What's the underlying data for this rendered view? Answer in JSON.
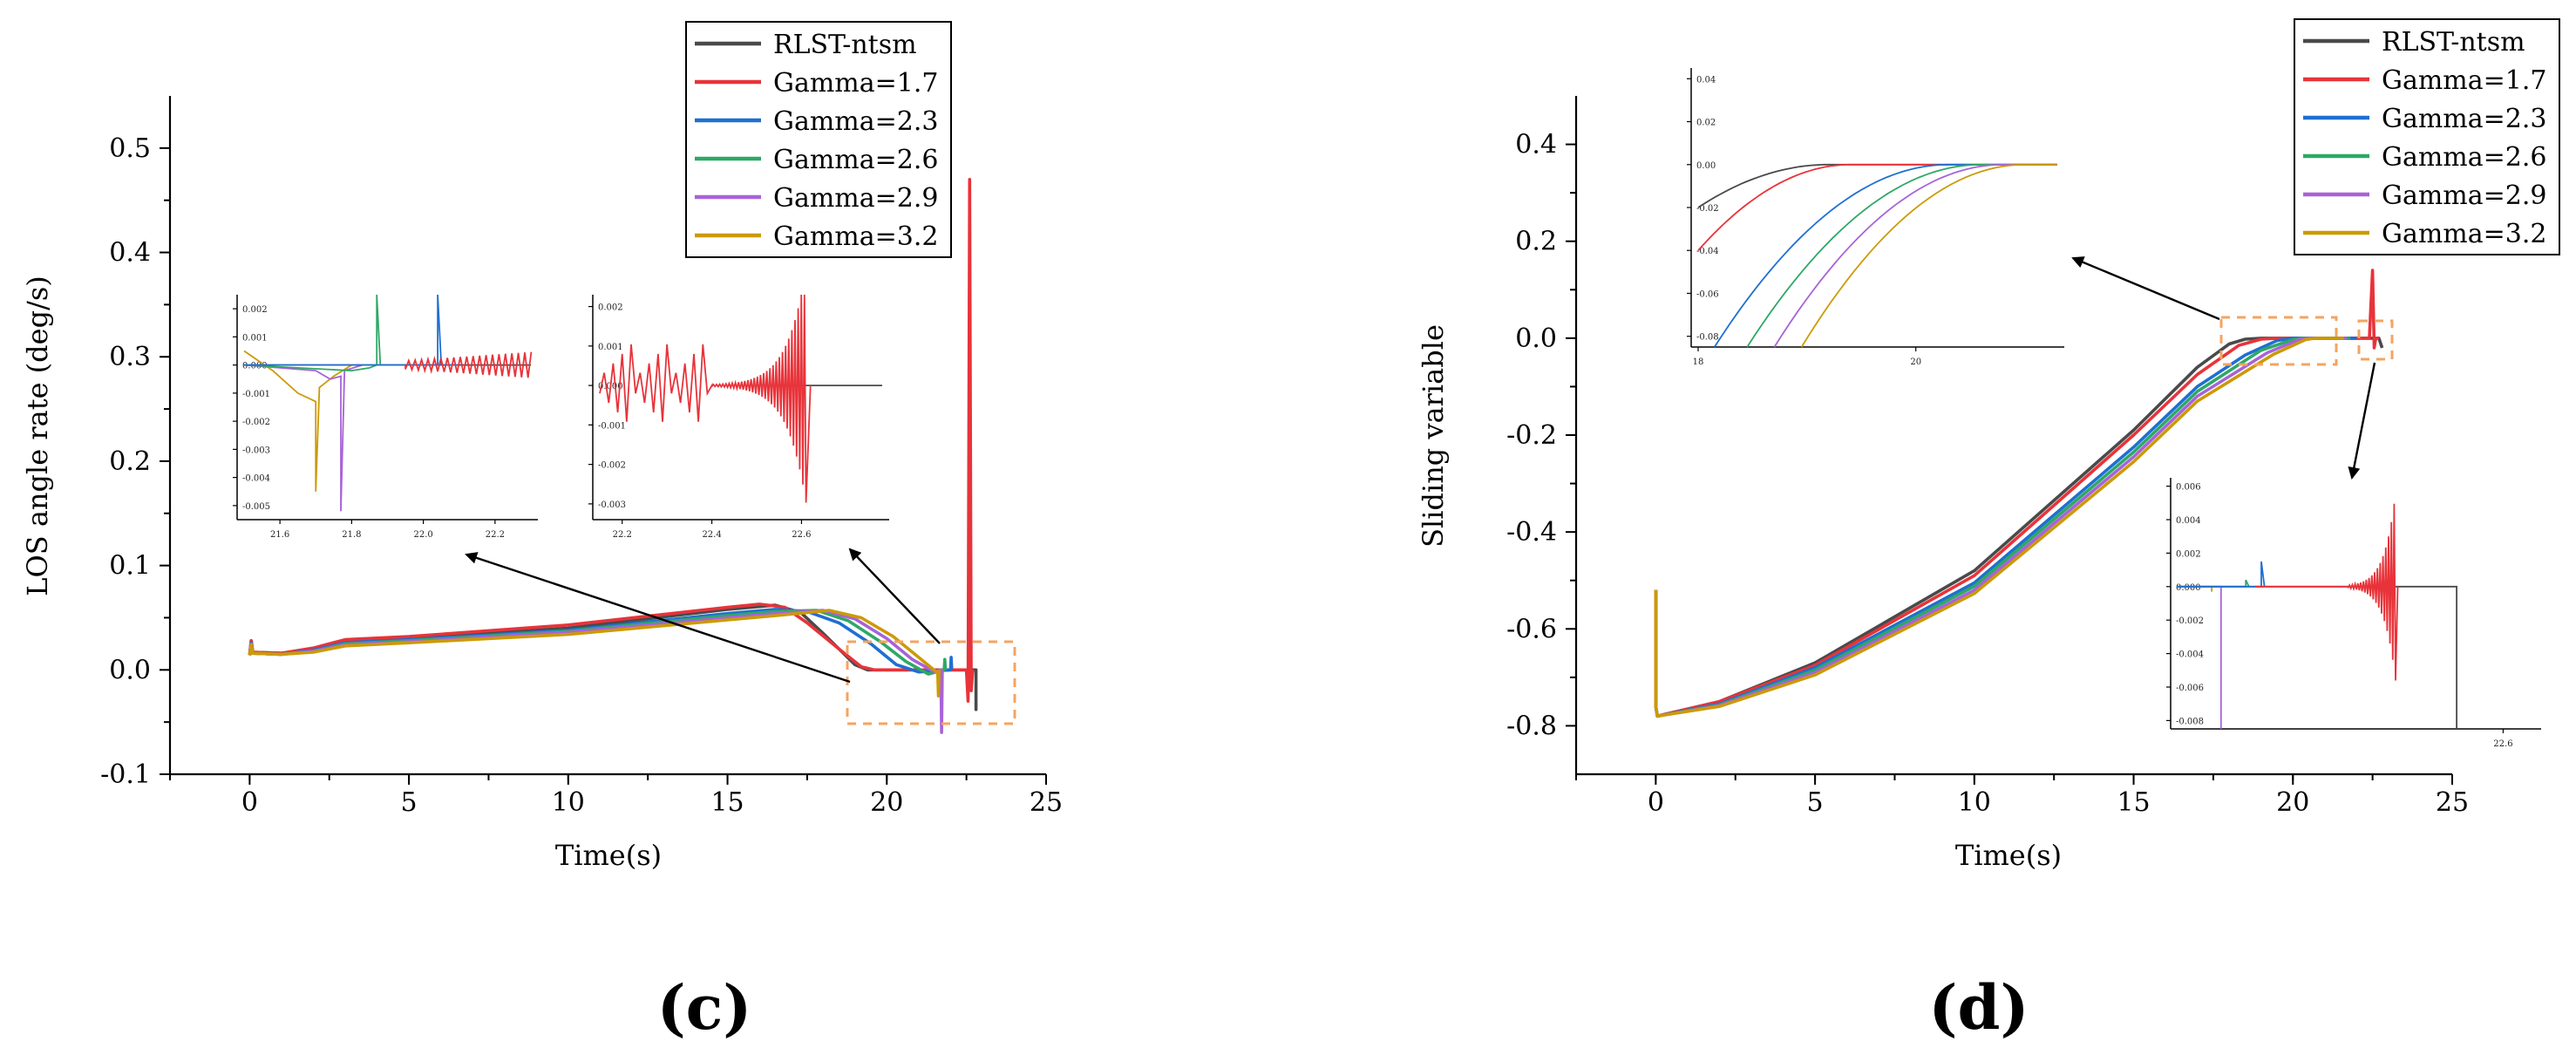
{
  "colors": {
    "RLST-ntsm": "#4a4a4a",
    "Gamma=1.7": "#e8333a",
    "Gamma=2.3": "#1f6fd1",
    "Gamma=2.6": "#2ea866",
    "Gamma=2.9": "#a763d8",
    "Gamma=3.2": "#cc9a06",
    "zoom_box": "#f4a460"
  },
  "legend": [
    "RLST-ntsm",
    "Gamma=1.7",
    "Gamma=2.3",
    "Gamma=2.6",
    "Gamma=2.9",
    "Gamma=3.2"
  ],
  "chart_data": [
    {
      "panel_label": "(c)",
      "type": "line",
      "title": "",
      "xlabel": "Time(s)",
      "ylabel": "LOS angle rate (deg/s)",
      "xlim": [
        -2.5,
        25
      ],
      "ylim": [
        -0.1,
        0.55
      ],
      "xticks": [
        "0",
        "5",
        "10",
        "15",
        "20",
        "25"
      ],
      "yticks": [
        "-0.1",
        "0.0",
        "0.1",
        "0.2",
        "0.3",
        "0.4",
        "0.5"
      ],
      "series": [
        {
          "name": "RLST-ntsm",
          "x": [
            0,
            0.05,
            0.1,
            1,
            2,
            3,
            5,
            10,
            15,
            16.5,
            17.3,
            18,
            19,
            19.4,
            21,
            22,
            22.7,
            22.8,
            22.8,
            22.8
          ],
          "y": [
            0.015,
            0.028,
            0.017,
            0.016,
            0.02,
            0.028,
            0.03,
            0.04,
            0.058,
            0.062,
            0.055,
            0.035,
            0.005,
            0,
            0,
            0,
            0,
            0,
            -0.038,
            0
          ]
        },
        {
          "name": "Gamma=1.7",
          "x": [
            0,
            0.05,
            0.1,
            1,
            2,
            3,
            5,
            10,
            15,
            16,
            16.8,
            17.5,
            18.5,
            19.2,
            19.6,
            21,
            22.5,
            22.55,
            22.6,
            22.65,
            22.7
          ],
          "y": [
            0.015,
            0.028,
            0.017,
            0.016,
            0.021,
            0.029,
            0.032,
            0.043,
            0.06,
            0.063,
            0.06,
            0.045,
            0.02,
            0.003,
            0,
            0,
            0,
            -0.03,
            0.47,
            -0.02,
            0
          ]
        },
        {
          "name": "Gamma=2.3",
          "x": [
            0,
            0.05,
            0.1,
            1,
            2,
            3,
            5,
            10,
            15,
            16.5,
            17.5,
            18.5,
            19.5,
            20.3,
            21,
            22,
            22.02,
            22.04
          ],
          "y": [
            0.014,
            0.026,
            0.016,
            0.015,
            0.019,
            0.026,
            0.029,
            0.038,
            0.054,
            0.058,
            0.056,
            0.045,
            0.025,
            0.005,
            -0.002,
            0,
            0.012,
            0
          ]
        },
        {
          "name": "Gamma=2.6",
          "x": [
            0,
            0.05,
            0.1,
            1,
            2,
            3,
            5,
            10,
            15,
            16.5,
            17.8,
            18.8,
            19.8,
            20.6,
            21.3,
            21.8,
            21.82,
            21.84
          ],
          "y": [
            0.014,
            0.025,
            0.016,
            0.015,
            0.018,
            0.025,
            0.028,
            0.037,
            0.052,
            0.056,
            0.057,
            0.047,
            0.027,
            0.008,
            -0.004,
            0,
            0.01,
            0
          ]
        },
        {
          "name": "Gamma=2.9",
          "x": [
            0,
            0.05,
            0.1,
            1,
            2,
            3,
            5,
            10,
            15,
            16.5,
            18,
            19,
            20,
            20.8,
            21.5,
            21.7,
            21.72,
            21.74
          ],
          "y": [
            0.014,
            0.025,
            0.016,
            0.015,
            0.018,
            0.024,
            0.027,
            0.036,
            0.05,
            0.054,
            0.057,
            0.049,
            0.03,
            0.01,
            -0.002,
            0,
            -0.06,
            0
          ]
        },
        {
          "name": "Gamma=3.2",
          "x": [
            0,
            0.05,
            0.1,
            1,
            2,
            3,
            5,
            10,
            15,
            16.5,
            18.2,
            19.2,
            20.2,
            21,
            21.6,
            21.62,
            21.64
          ],
          "y": [
            0.014,
            0.024,
            0.016,
            0.015,
            0.017,
            0.023,
            0.026,
            0.034,
            0.048,
            0.052,
            0.057,
            0.05,
            0.032,
            0.012,
            -0.003,
            -0.025,
            0
          ]
        }
      ],
      "inset_left": {
        "xticks": [
          "21.6",
          "21.8",
          "22.0",
          "22.2"
        ],
        "yticks": [
          "0.002",
          "0.001",
          "0.000",
          "-0.001",
          "-0.002",
          "-0.003",
          "-0.004",
          "-0.005"
        ],
        "xlim": [
          21.5,
          22.3
        ],
        "ylim": [
          -0.0055,
          0.0025
        ]
      },
      "inset_right": {
        "xticks": [
          "22.2",
          "22.4",
          "22.6"
        ],
        "yticks": [
          "0.002",
          "0.001",
          "0.000",
          "-0.001",
          "-0.002",
          "-0.003"
        ],
        "xlim": [
          22.15,
          22.78
        ],
        "ylim": [
          -0.0034,
          0.0023
        ]
      }
    },
    {
      "panel_label": "(d)",
      "type": "line",
      "title": "",
      "xlabel": "Time(s)",
      "ylabel": "Sliding variable",
      "xlim": [
        -2.5,
        25
      ],
      "ylim": [
        -0.9,
        0.5
      ],
      "xticks": [
        "0",
        "5",
        "10",
        "15",
        "20",
        "25"
      ],
      "yticks": [
        "-0.8",
        "-0.6",
        "-0.4",
        "-0.2",
        "0.0",
        "0.2",
        "0.4"
      ],
      "series": [
        {
          "name": "RLST-ntsm",
          "x": [
            0,
            0,
            0.05,
            2,
            5,
            10,
            15,
            17,
            18,
            18.5,
            19,
            22.7,
            22.8
          ],
          "y": [
            -0.52,
            -0.76,
            -0.78,
            -0.75,
            -0.67,
            -0.48,
            -0.19,
            -0.06,
            -0.012,
            -0.002,
            0,
            0,
            -0.02
          ]
        },
        {
          "name": "Gamma=1.7",
          "x": [
            0,
            0,
            0.05,
            2,
            5,
            10,
            15,
            17,
            18.3,
            19,
            19.5,
            22.4,
            22.5,
            22.55,
            22.6,
            22.7
          ],
          "y": [
            -0.52,
            -0.76,
            -0.78,
            -0.75,
            -0.675,
            -0.49,
            -0.2,
            -0.075,
            -0.015,
            -0.002,
            0,
            0,
            0.14,
            -0.02,
            0,
            0
          ]
        },
        {
          "name": "Gamma=2.3",
          "x": [
            0,
            0,
            0.05,
            2,
            5,
            10,
            15,
            17,
            18.5,
            19.5,
            20,
            22
          ],
          "y": [
            -0.52,
            -0.76,
            -0.78,
            -0.755,
            -0.68,
            -0.505,
            -0.225,
            -0.1,
            -0.035,
            -0.005,
            0,
            0
          ]
        },
        {
          "name": "Gamma=2.6",
          "x": [
            0,
            0,
            0.05,
            2,
            5,
            10,
            15,
            17,
            19,
            20,
            20.3,
            21.8
          ],
          "y": [
            -0.52,
            -0.76,
            -0.78,
            -0.757,
            -0.685,
            -0.512,
            -0.235,
            -0.11,
            -0.025,
            -0.003,
            0,
            0
          ]
        },
        {
          "name": "Gamma=2.9",
          "x": [
            0,
            0,
            0.05,
            2,
            5,
            10,
            15,
            17,
            19.2,
            20.2,
            20.5,
            21.7
          ],
          "y": [
            -0.52,
            -0.76,
            -0.78,
            -0.758,
            -0.69,
            -0.52,
            -0.245,
            -0.12,
            -0.03,
            -0.003,
            0,
            0
          ]
        },
        {
          "name": "Gamma=3.2",
          "x": [
            0,
            0,
            0.05,
            2,
            5,
            10,
            15,
            17,
            19.4,
            20.4,
            20.7,
            21.6
          ],
          "y": [
            -0.52,
            -0.76,
            -0.78,
            -0.76,
            -0.695,
            -0.527,
            -0.255,
            -0.13,
            -0.033,
            -0.003,
            0,
            0
          ]
        }
      ],
      "inset_top": {
        "xticks": [
          "18",
          "20"
        ],
        "yticks": [
          "0.04",
          "0.02",
          "0.00",
          "-0.02",
          "-0.04",
          "-0.06",
          "-0.08"
        ],
        "xlim": [
          18,
          21.3
        ],
        "ylim": [
          -0.085,
          0.045
        ]
      },
      "inset_bottom": {
        "xticks": [
          "22.6"
        ],
        "yticks": [
          "0.006",
          "0.004",
          "0.002",
          "0.000",
          "-0.002",
          "-0.004",
          "-0.006",
          "-0.008"
        ],
        "xlim": [
          21.55,
          22.7
        ],
        "ylim": [
          -0.0085,
          0.0065
        ]
      }
    }
  ]
}
